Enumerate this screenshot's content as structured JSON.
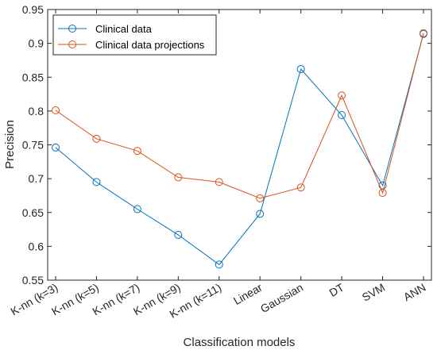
{
  "chart_data": {
    "type": "line",
    "title": "",
    "xlabel": "Classification models",
    "ylabel": "Precision",
    "categories": [
      "K-nn (k=3)",
      "K-nn (k=5)",
      "K-nn (k=7)",
      "K-nn (k=9)",
      "K-nn (k=11)",
      "Linear",
      "Gaussian",
      "DT",
      "SVM",
      "ANN"
    ],
    "ylim": [
      0.55,
      0.95
    ],
    "yticks": [
      "0.55",
      "0.6",
      "0.65",
      "0.7",
      "0.75",
      "0.8",
      "0.85",
      "0.9",
      "0.95"
    ],
    "grid": false,
    "legend_position": "top-left",
    "series": [
      {
        "name": "Clinical data",
        "color": "#0072BD",
        "marker": "circle",
        "values": [
          0.746,
          0.695,
          0.655,
          0.617,
          0.573,
          0.648,
          0.862,
          0.794,
          0.69,
          0.914
        ]
      },
      {
        "name": "Clinical data projections",
        "color": "#D95319",
        "marker": "circle",
        "values": [
          0.801,
          0.759,
          0.741,
          0.702,
          0.695,
          0.671,
          0.687,
          0.823,
          0.679,
          0.915
        ]
      }
    ]
  }
}
